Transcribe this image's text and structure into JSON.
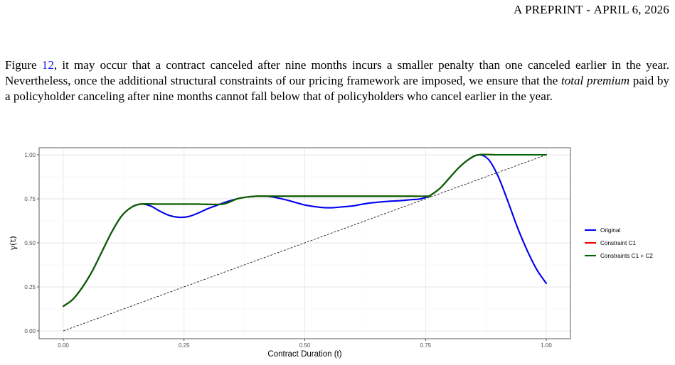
{
  "header": {
    "prefix": "A",
    "preprint_label": "PREPRINT",
    "separator": " - ",
    "date": "APRIL 6, 2026"
  },
  "paragraph": {
    "part1": "Figure ",
    "figure_ref": "12",
    "part2": ", it may occur that a contract canceled after nine months incurs a smaller penalty than one canceled earlier in the year. Nevertheless, once the additional structural constraints of our pricing framework are imposed, we ensure that the ",
    "emphasis": "total premium",
    "part3": " paid by a policyholder canceling after nine months cannot fall below that of policyholders who cancel earlier in the year."
  },
  "chart_data": {
    "type": "line",
    "xlabel": "Contract Duration (t)",
    "ylabel": "γ(t)",
    "xlim": [
      0,
      1
    ],
    "ylim": [
      0,
      1
    ],
    "xticks": [
      0,
      0.25,
      0.5,
      0.75,
      1
    ],
    "xtick_labels": [
      "0.00",
      "0.25",
      "0.50",
      "0.75",
      "1.00"
    ],
    "yticks": [
      0,
      0.25,
      0.5,
      0.75,
      1
    ],
    "ytick_labels": [
      "0.00",
      "0.25",
      "0.50",
      "0.75",
      "1.00"
    ],
    "grid": true,
    "legend_position": "right",
    "colors": {
      "original": "#0000ee",
      "c1": "#ee0000",
      "c1c2": "#006400",
      "diagonal": "#000000"
    },
    "series": [
      {
        "name": "Original",
        "x": [
          0.0,
          0.02,
          0.04,
          0.06,
          0.08,
          0.1,
          0.12,
          0.14,
          0.16,
          0.18,
          0.2,
          0.22,
          0.24,
          0.26,
          0.28,
          0.3,
          0.32,
          0.34,
          0.36,
          0.38,
          0.4,
          0.42,
          0.44,
          0.46,
          0.48,
          0.5,
          0.52,
          0.54,
          0.56,
          0.58,
          0.6,
          0.62,
          0.64,
          0.66,
          0.68,
          0.7,
          0.72,
          0.74,
          0.76,
          0.78,
          0.8,
          0.82,
          0.84,
          0.86,
          0.88,
          0.9,
          0.92,
          0.94,
          0.96,
          0.98,
          1.0
        ],
        "y": [
          0.14,
          0.18,
          0.25,
          0.34,
          0.45,
          0.56,
          0.65,
          0.7,
          0.72,
          0.71,
          0.68,
          0.655,
          0.645,
          0.65,
          0.67,
          0.695,
          0.715,
          0.735,
          0.75,
          0.76,
          0.765,
          0.765,
          0.757,
          0.745,
          0.73,
          0.715,
          0.706,
          0.7,
          0.7,
          0.705,
          0.71,
          0.72,
          0.728,
          0.733,
          0.737,
          0.74,
          0.745,
          0.75,
          0.77,
          0.81,
          0.87,
          0.93,
          0.975,
          1.0,
          0.975,
          0.88,
          0.74,
          0.59,
          0.46,
          0.35,
          0.27
        ]
      },
      {
        "name": "Constraint C1",
        "x": [
          0.0,
          0.02,
          0.04,
          0.06,
          0.08,
          0.1,
          0.12,
          0.14,
          0.16,
          0.2,
          0.24,
          0.28,
          0.33,
          0.36,
          0.38,
          0.4,
          0.42,
          0.5,
          0.6,
          0.7,
          0.755,
          0.76,
          0.78,
          0.8,
          0.82,
          0.84,
          0.86,
          0.9,
          0.95,
          1.0
        ],
        "y": [
          0.14,
          0.18,
          0.25,
          0.34,
          0.45,
          0.56,
          0.65,
          0.7,
          0.72,
          0.72,
          0.72,
          0.72,
          0.72,
          0.75,
          0.76,
          0.765,
          0.765,
          0.765,
          0.765,
          0.765,
          0.765,
          0.77,
          0.81,
          0.87,
          0.93,
          0.975,
          1.0,
          1.0,
          1.0,
          1.0
        ]
      },
      {
        "name": "Constraints C1 + C2",
        "x": [
          0.0,
          0.02,
          0.04,
          0.06,
          0.08,
          0.1,
          0.12,
          0.14,
          0.16,
          0.2,
          0.24,
          0.28,
          0.33,
          0.36,
          0.38,
          0.4,
          0.42,
          0.5,
          0.6,
          0.7,
          0.755,
          0.76,
          0.78,
          0.8,
          0.82,
          0.84,
          0.86,
          0.9,
          0.95,
          1.0
        ],
        "y": [
          0.14,
          0.18,
          0.25,
          0.34,
          0.45,
          0.56,
          0.65,
          0.7,
          0.72,
          0.72,
          0.72,
          0.72,
          0.72,
          0.75,
          0.76,
          0.765,
          0.765,
          0.765,
          0.765,
          0.765,
          0.765,
          0.77,
          0.81,
          0.87,
          0.93,
          0.975,
          1.0,
          1.0,
          1.0,
          1.0
        ]
      }
    ],
    "reference_line": {
      "x": [
        0,
        1
      ],
      "y": [
        0,
        1
      ],
      "style": "dashed"
    }
  }
}
